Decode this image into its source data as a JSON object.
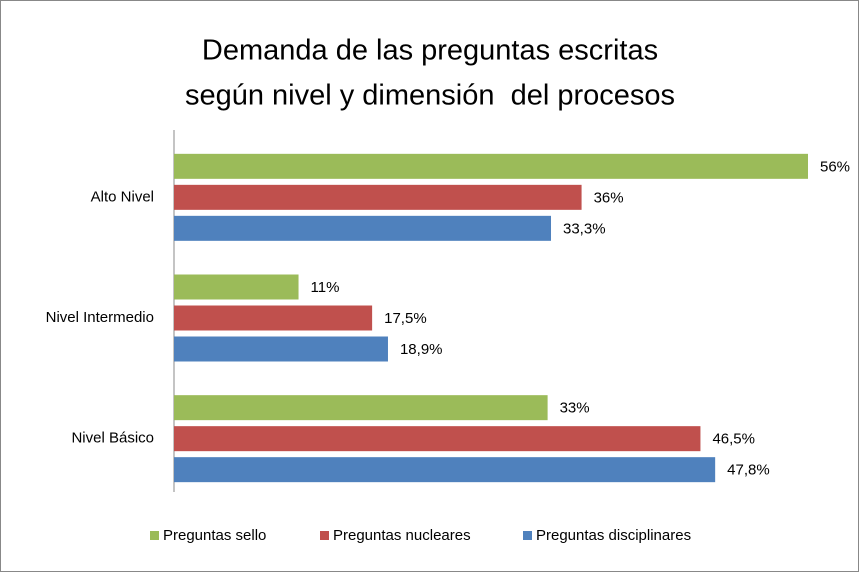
{
  "chart_data": {
    "type": "barh",
    "title": [
      "Demanda de las preguntas escritas",
      "según nivel y dimensión  del procesos"
    ],
    "categories": [
      "Alto Nivel",
      "Nivel Intermedio",
      "Nivel Básico"
    ],
    "series": [
      {
        "name": "Preguntas sello",
        "color": "#9bbb59",
        "values": [
          56,
          11,
          33
        ],
        "value_labels": [
          "56%",
          "11%",
          "33%"
        ]
      },
      {
        "name": "Preguntas nucleares",
        "color": "#c0504d",
        "values": [
          36,
          17.5,
          46.5
        ],
        "value_labels": [
          "36%",
          "17,5%",
          "46,5%"
        ]
      },
      {
        "name": "Preguntas disciplinares",
        "color": "#4f81bd",
        "values": [
          33.3,
          18.9,
          47.8
        ],
        "value_labels": [
          "33,3%",
          "18,9%",
          "47,8%"
        ]
      }
    ],
    "legend": "bottom"
  }
}
